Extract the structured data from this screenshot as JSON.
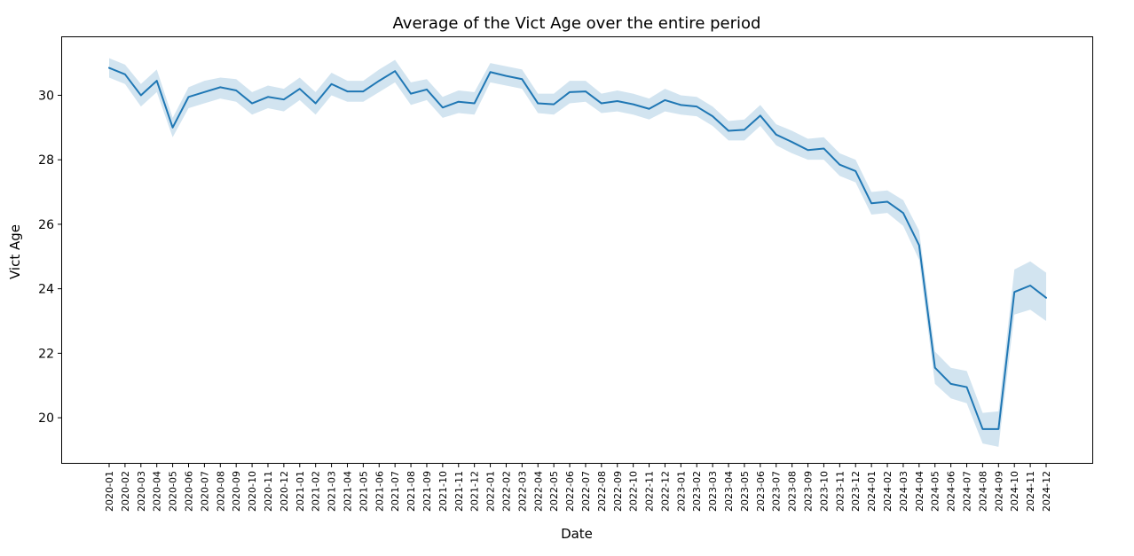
{
  "chart_data": {
    "type": "line",
    "title": "Average of the Vict Age over the entire period",
    "xlabel": "Date",
    "ylabel": "Vict Age",
    "ylim": [
      18.6,
      31.8
    ],
    "yticks": [
      20,
      22,
      24,
      26,
      28,
      30
    ],
    "grid": false,
    "legend": "none",
    "colors": {
      "line": "#1f77b4",
      "band": "#1f77b4"
    },
    "x": [
      "2020-01",
      "2020-02",
      "2020-03",
      "2020-04",
      "2020-05",
      "2020-06",
      "2020-07",
      "2020-08",
      "2020-09",
      "2020-10",
      "2020-11",
      "2020-12",
      "2021-01",
      "2021-02",
      "2021-03",
      "2021-04",
      "2021-05",
      "2021-06",
      "2021-07",
      "2021-08",
      "2021-09",
      "2021-10",
      "2021-11",
      "2021-12",
      "2022-01",
      "2022-02",
      "2022-03",
      "2022-04",
      "2022-05",
      "2022-06",
      "2022-07",
      "2022-08",
      "2022-09",
      "2022-10",
      "2022-11",
      "2022-12",
      "2023-01",
      "2023-02",
      "2023-03",
      "2023-04",
      "2023-05",
      "2023-06",
      "2023-07",
      "2023-08",
      "2023-09",
      "2023-10",
      "2023-11",
      "2023-12",
      "2024-01",
      "2024-02",
      "2024-03",
      "2024-04",
      "2024-05",
      "2024-06",
      "2024-07",
      "2024-08",
      "2024-09",
      "2024-10",
      "2024-11",
      "2024-12"
    ],
    "series": [
      {
        "values": [
          30.85,
          30.65,
          30.0,
          30.45,
          29.0,
          29.95,
          30.1,
          30.25,
          30.15,
          29.75,
          29.95,
          29.87,
          30.2,
          29.75,
          30.35,
          30.12,
          30.12,
          30.45,
          30.75,
          30.05,
          30.18,
          29.62,
          29.8,
          29.75,
          30.72,
          30.6,
          30.5,
          29.75,
          29.72,
          30.1,
          30.12,
          29.75,
          29.82,
          29.72,
          29.58,
          29.85,
          29.7,
          29.65,
          29.35,
          28.9,
          28.93,
          29.37,
          28.78,
          28.55,
          28.3,
          28.35,
          27.85,
          27.65,
          26.65,
          26.7,
          26.35,
          25.35,
          21.55,
          21.05,
          20.95,
          19.65,
          19.65,
          23.9,
          24.1,
          23.72
        ],
        "ci_lower": [
          30.55,
          30.35,
          29.65,
          30.1,
          28.7,
          29.6,
          29.75,
          29.9,
          29.8,
          29.4,
          29.6,
          29.5,
          29.85,
          29.4,
          30.0,
          29.8,
          29.8,
          30.1,
          30.4,
          29.7,
          29.85,
          29.3,
          29.45,
          29.4,
          30.4,
          30.3,
          30.2,
          29.45,
          29.4,
          29.75,
          29.8,
          29.45,
          29.5,
          29.4,
          29.25,
          29.5,
          29.4,
          29.35,
          29.05,
          28.6,
          28.6,
          29.05,
          28.45,
          28.2,
          28.0,
          28.0,
          27.5,
          27.3,
          26.3,
          26.35,
          25.95,
          24.9,
          21.05,
          20.6,
          20.45,
          19.2,
          19.1,
          23.2,
          23.35,
          23.0
        ],
        "ci_upper": [
          31.15,
          30.95,
          30.35,
          30.8,
          29.3,
          30.25,
          30.45,
          30.55,
          30.5,
          30.1,
          30.3,
          30.2,
          30.55,
          30.1,
          30.7,
          30.45,
          30.45,
          30.8,
          31.1,
          30.4,
          30.5,
          29.95,
          30.15,
          30.1,
          31.0,
          30.9,
          30.8,
          30.05,
          30.05,
          30.45,
          30.45,
          30.05,
          30.15,
          30.05,
          29.9,
          30.2,
          30.0,
          29.95,
          29.65,
          29.2,
          29.25,
          29.7,
          29.1,
          28.9,
          28.65,
          28.7,
          28.2,
          28.0,
          27.0,
          27.05,
          26.75,
          25.8,
          22.05,
          21.55,
          21.45,
          20.15,
          20.2,
          24.6,
          24.85,
          24.5
        ]
      }
    ]
  }
}
